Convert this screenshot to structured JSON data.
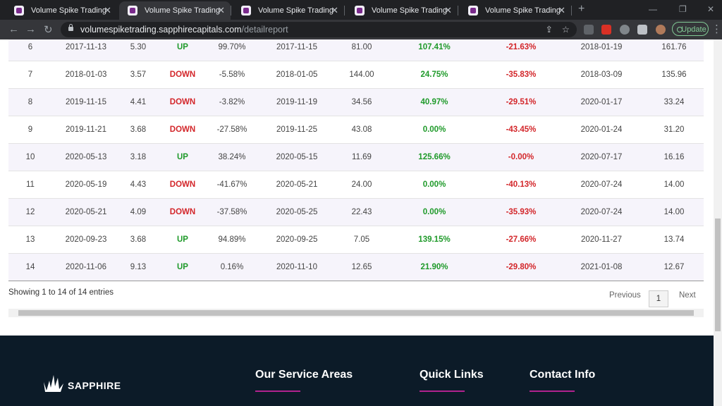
{
  "browser": {
    "tabs": [
      "Volume Spike Trading",
      "Volume Spike Trading",
      "Volume Spike Trading",
      "Volume Spike Trading",
      "Volume Spike Trading"
    ],
    "url_host": "volumespiketrading.sapphirecapitals.com",
    "url_path": "/detailreport",
    "update_button": "Update"
  },
  "table": {
    "rows": [
      [
        "6",
        "2017-11-13",
        "5.30",
        "UP",
        "99.70%",
        "2017-11-15",
        "81.00",
        "107.41%",
        "-21.63%",
        "2018-01-19",
        "161.76"
      ],
      [
        "7",
        "2018-01-03",
        "3.57",
        "DOWN",
        "-5.58%",
        "2018-01-05",
        "144.00",
        "24.75%",
        "-35.83%",
        "2018-03-09",
        "135.96"
      ],
      [
        "8",
        "2019-11-15",
        "4.41",
        "DOWN",
        "-3.82%",
        "2019-11-19",
        "34.56",
        "40.97%",
        "-29.51%",
        "2020-01-17",
        "33.24"
      ],
      [
        "9",
        "2019-11-21",
        "3.68",
        "DOWN",
        "-27.58%",
        "2019-11-25",
        "43.08",
        "0.00%",
        "-43.45%",
        "2020-01-24",
        "31.20"
      ],
      [
        "10",
        "2020-05-13",
        "3.18",
        "UP",
        "38.24%",
        "2020-05-15",
        "11.69",
        "125.66%",
        "-0.00%",
        "2020-07-17",
        "16.16"
      ],
      [
        "11",
        "2020-05-19",
        "4.43",
        "DOWN",
        "-41.67%",
        "2020-05-21",
        "24.00",
        "0.00%",
        "-40.13%",
        "2020-07-24",
        "14.00"
      ],
      [
        "12",
        "2020-05-21",
        "4.09",
        "DOWN",
        "-37.58%",
        "2020-05-25",
        "22.43",
        "0.00%",
        "-35.93%",
        "2020-07-24",
        "14.00"
      ],
      [
        "13",
        "2020-09-23",
        "3.68",
        "UP",
        "94.89%",
        "2020-09-25",
        "7.05",
        "139.15%",
        "-27.66%",
        "2020-11-27",
        "13.74"
      ],
      [
        "14",
        "2020-11-06",
        "9.13",
        "UP",
        "0.16%",
        "2020-11-10",
        "12.65",
        "21.90%",
        "-29.80%",
        "2021-01-08",
        "12.67"
      ]
    ],
    "direction_colors": [
      "#1f9a2a",
      "#d3262a",
      "#d3262a",
      "#d3262a",
      "#1f9a2a",
      "#d3262a",
      "#d3262a",
      "#1f9a2a",
      "#1f9a2a"
    ],
    "info": "Showing 1 to 14 of 14 entries",
    "pagination": {
      "previous": "Previous",
      "current": "1",
      "next": "Next"
    }
  },
  "footer": {
    "logo": "SAPPHIRE",
    "headings": [
      "Our Service Areas",
      "Quick Links",
      "Contact Info"
    ]
  }
}
